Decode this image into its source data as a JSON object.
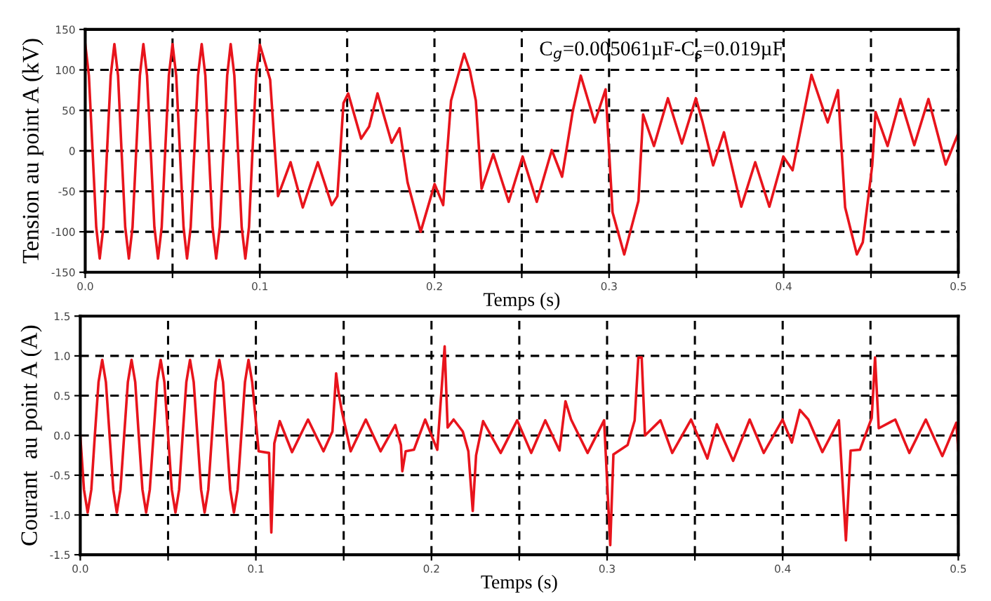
{
  "chart_data": [
    {
      "type": "line",
      "ylabel": "Tension au point A (kV)",
      "xlabel": "Temps (s)",
      "annotations": [
        "C$_{g}$=0.005061µF-C$_{s}$=0.019µF"
      ],
      "series": [
        {
          "color": "#e8141c",
          "x": [
            0,
            0.0021,
            0.0042,
            0.0063,
            0.0083,
            0.0104,
            0.0125,
            0.0146,
            0.0167,
            0.0188,
            0.0208,
            0.0229,
            0.025,
            0.0271,
            0.0292,
            0.0313,
            0.0333,
            0.0354,
            0.0375,
            0.0396,
            0.0417,
            0.0438,
            0.0458,
            0.0479,
            0.05,
            0.0521,
            0.0542,
            0.0563,
            0.0583,
            0.0604,
            0.0625,
            0.0646,
            0.0667,
            0.0688,
            0.0708,
            0.0729,
            0.075,
            0.0771,
            0.0792,
            0.0813,
            0.0833,
            0.0854,
            0.0875,
            0.0896,
            0.0917,
            0.0938,
            0.0958,
            0.0979,
            0.1,
            0.1059,
            0.1104,
            0.1176,
            0.1246,
            0.1332,
            0.1412,
            0.1444,
            0.1479,
            0.1506,
            0.158,
            0.1626,
            0.1674,
            0.1755,
            0.18,
            0.1846,
            0.1921,
            0.2001,
            0.205,
            0.2095,
            0.217,
            0.2203,
            0.2237,
            0.227,
            0.2337,
            0.2425,
            0.2505,
            0.2586,
            0.2672,
            0.2731,
            0.2792,
            0.2838,
            0.2918,
            0.298,
            0.302,
            0.3087,
            0.3168,
            0.3195,
            0.3257,
            0.3337,
            0.3417,
            0.3497,
            0.3535,
            0.3596,
            0.3658,
            0.3757,
            0.3837,
            0.3918,
            0.3998,
            0.4051,
            0.4159,
            0.4252,
            0.4311,
            0.4352,
            0.4419,
            0.4453,
            0.4507,
            0.4526,
            0.4595,
            0.4668,
            0.4748,
            0.4829,
            0.4928,
            0.5
          ],
          "values": [
            132,
            93,
            0,
            -94,
            -133,
            -94,
            0,
            93,
            132,
            93,
            0,
            -94,
            -133,
            -94,
            0,
            93,
            132,
            93,
            0,
            -94,
            -133,
            -94,
            0,
            93,
            132,
            93,
            0,
            -94,
            -133,
            -94,
            0,
            93,
            132,
            93,
            0,
            -94,
            -133,
            -94,
            0,
            93,
            132,
            93,
            0,
            -94,
            -133,
            -94,
            0,
            93,
            131,
            88,
            -56,
            -14,
            -70,
            -14,
            -67,
            -56,
            59,
            71,
            15,
            30,
            71,
            10,
            28,
            -39,
            -100,
            -41,
            -67,
            62,
            120,
            99,
            62,
            -47,
            -4,
            -63,
            -7,
            -63,
            1,
            -32,
            49,
            93,
            35,
            76,
            -76,
            -128,
            -62,
            45,
            6,
            65,
            9,
            65,
            36,
            -18,
            23,
            -69,
            -14,
            -69,
            -7,
            -24,
            94,
            35,
            75,
            -70,
            -128,
            -113,
            -18,
            48,
            6,
            64,
            7,
            64,
            -17,
            22
          ]
        }
      ],
      "xlim": [
        0,
        0.5
      ],
      "xticks": [
        {
          "value": 0,
          "label": "0.0"
        },
        {
          "value": 0.05,
          "label": null
        },
        0.1,
        {
          "value": 0.15,
          "label": null
        },
        0.2,
        {
          "value": 0.25,
          "label": null
        },
        0.3,
        {
          "value": 0.35,
          "label": null
        },
        0.4,
        {
          "value": 0.45,
          "label": null
        },
        0.5
      ],
      "ylim": [
        -150,
        150
      ],
      "yticks": [
        -150,
        -100,
        -50,
        0,
        50,
        100,
        150
      ],
      "grid": true,
      "line_style": "solid",
      "marker": "none"
    },
    {
      "type": "line",
      "ylabel": "Courant  au point A (A)",
      "xlabel": "Temps (s)",
      "series": [
        {
          "color": "#e8141c",
          "x": [
            0,
            0.0021,
            0.0042,
            0.0063,
            0.0083,
            0.0104,
            0.0125,
            0.0146,
            0.0167,
            0.0188,
            0.0208,
            0.0229,
            0.025,
            0.0271,
            0.0292,
            0.0313,
            0.0333,
            0.0354,
            0.0375,
            0.0396,
            0.0417,
            0.0438,
            0.0458,
            0.0479,
            0.05,
            0.0521,
            0.0542,
            0.0563,
            0.0583,
            0.0604,
            0.0625,
            0.0646,
            0.0667,
            0.0688,
            0.0708,
            0.0729,
            0.075,
            0.0771,
            0.0792,
            0.0813,
            0.0833,
            0.0854,
            0.0875,
            0.0896,
            0.0917,
            0.0938,
            0.0958,
            0.0979,
            0.1016,
            0.1075,
            0.1088,
            0.1105,
            0.1136,
            0.1206,
            0.1297,
            0.1385,
            0.1436,
            0.1457,
            0.147,
            0.149,
            0.154,
            0.1626,
            0.171,
            0.1794,
            0.1826,
            0.1834,
            0.1853,
            0.19,
            0.1964,
            0.2033,
            0.2075,
            0.2092,
            0.2126,
            0.2178,
            0.221,
            0.2235,
            0.2254,
            0.2294,
            0.2394,
            0.2488,
            0.2568,
            0.2648,
            0.2729,
            0.2763,
            0.2795,
            0.2889,
            0.2983,
            0.3018,
            0.3036,
            0.3117,
            0.3157,
            0.3178,
            0.3197,
            0.3216,
            0.3304,
            0.3371,
            0.3478,
            0.3571,
            0.3625,
            0.3718,
            0.3812,
            0.3892,
            0.3999,
            0.4052,
            0.4098,
            0.4146,
            0.4226,
            0.432,
            0.436,
            0.4387,
            0.444,
            0.4507,
            0.4526,
            0.4547,
            0.4641,
            0.4721,
            0.4815,
            0.4909,
            0.4989,
            0.5
          ],
          "values": [
            0,
            -0.68,
            -0.97,
            -0.68,
            0,
            0.67,
            0.95,
            0.67,
            0,
            -0.68,
            -0.97,
            -0.68,
            0,
            0.67,
            0.95,
            0.67,
            0,
            -0.68,
            -0.97,
            -0.68,
            0,
            0.67,
            0.95,
            0.67,
            0,
            -0.68,
            -0.97,
            -0.68,
            0,
            0.67,
            0.95,
            0.67,
            0,
            -0.68,
            -0.97,
            -0.68,
            0,
            0.67,
            0.95,
            0.67,
            0,
            -0.68,
            -0.97,
            -0.68,
            0,
            0.67,
            0.95,
            0.67,
            -0.2,
            -0.22,
            -1.22,
            -0.1,
            0.18,
            -0.21,
            0.2,
            -0.2,
            0.05,
            0.78,
            0.55,
            0.3,
            -0.2,
            0.2,
            -0.2,
            0.13,
            -0.12,
            -0.45,
            -0.2,
            -0.18,
            0.2,
            -0.18,
            1.12,
            0.1,
            0.2,
            0.05,
            -0.2,
            -0.95,
            -0.25,
            0.18,
            -0.22,
            0.19,
            -0.22,
            0.19,
            -0.19,
            0.43,
            0.2,
            -0.22,
            0.19,
            -1.38,
            -0.24,
            -0.12,
            0.19,
            0.98,
            0.98,
            0,
            0.19,
            -0.22,
            0.2,
            -0.29,
            0.14,
            -0.32,
            0.2,
            -0.22,
            0.2,
            -0.09,
            0.32,
            0.2,
            -0.21,
            0.19,
            -1.32,
            -0.19,
            -0.18,
            0.22,
            0.98,
            0.09,
            0.2,
            -0.22,
            0.2,
            -0.26,
            0.16,
            -0.19
          ]
        }
      ],
      "xlim": [
        0,
        0.5
      ],
      "xticks": [
        {
          "value": 0,
          "label": "0.0"
        },
        {
          "value": 0.05,
          "label": null
        },
        0.1,
        {
          "value": 0.15,
          "label": null
        },
        0.2,
        {
          "value": 0.25,
          "label": null
        },
        0.3,
        {
          "value": 0.35,
          "label": null
        },
        0.4,
        {
          "value": 0.45,
          "label": null
        },
        0.5
      ],
      "ylim": [
        -1.5,
        1.5
      ],
      "yticks": [
        -1.5,
        {
          "value": -1,
          "label": "-1.0"
        },
        -0.5,
        {
          "value": 0,
          "label": "0.0"
        },
        0.5,
        {
          "value": 1,
          "label": "1.0"
        },
        1.5
      ],
      "grid": true,
      "line_style": "solid",
      "marker": "none"
    }
  ]
}
